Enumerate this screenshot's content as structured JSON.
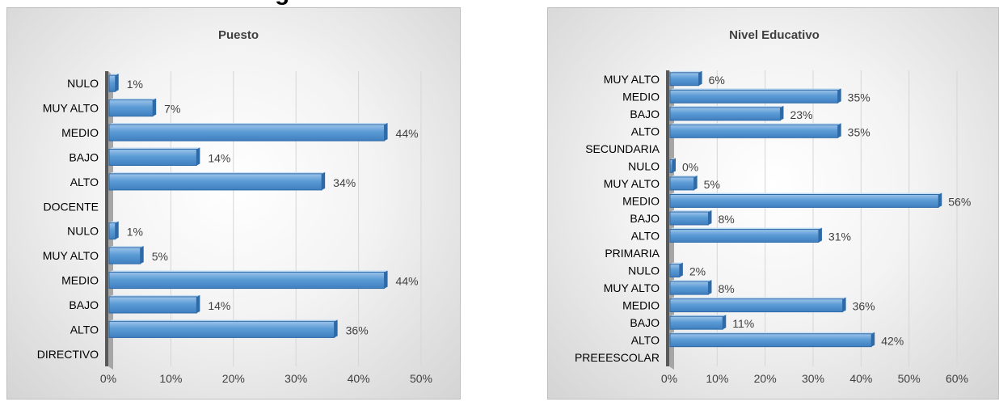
{
  "header_fragment": "g",
  "chart_data": [
    {
      "type": "bar",
      "orientation": "horizontal",
      "title": "Puesto",
      "categories": [
        "DIRECTIVO",
        "ALTO",
        "BAJO",
        "MEDIO",
        "MUY ALTO",
        "NULO",
        "DOCENTE",
        "ALTO",
        "BAJO",
        "MEDIO",
        "MUY ALTO",
        "NULO"
      ],
      "values": [
        null,
        36,
        14,
        44,
        5,
        1,
        null,
        34,
        14,
        44,
        7,
        1
      ],
      "labels": [
        "",
        "36%",
        "14%",
        "44%",
        "5%",
        "1%",
        "",
        "34%",
        "14%",
        "44%",
        "7%",
        "1%"
      ],
      "xticks": [
        "0%",
        "10%",
        "20%",
        "30%",
        "40%",
        "50%"
      ],
      "xlim": [
        0,
        50
      ],
      "grid": true,
      "bar_color": "#5b9bd5"
    },
    {
      "type": "bar",
      "orientation": "horizontal",
      "title": "Nivel Educativo",
      "categories": [
        "PREEESCOLAR",
        "ALTO",
        "BAJO",
        "MEDIO",
        "MUY ALTO",
        "NULO",
        "PRIMARIA",
        "ALTO",
        "BAJO",
        "MEDIO",
        "MUY ALTO",
        "NULO",
        "SECUNDARIA",
        "ALTO",
        "BAJO",
        "MEDIO",
        "MUY ALTO"
      ],
      "values": [
        null,
        42,
        11,
        36,
        8,
        2,
        null,
        31,
        8,
        56,
        5,
        0,
        null,
        35,
        23,
        35,
        6
      ],
      "labels": [
        "",
        "42%",
        "11%",
        "36%",
        "8%",
        "2%",
        "",
        "31%",
        "8%",
        "56%",
        "5%",
        "0%",
        "",
        "35%",
        "23%",
        "35%",
        "6%"
      ],
      "xticks": [
        "0%",
        "10%",
        "20%",
        "30%",
        "40%",
        "50%",
        "60%"
      ],
      "xlim": [
        0,
        60
      ],
      "grid": true,
      "bar_color": "#5b9bd5"
    }
  ]
}
